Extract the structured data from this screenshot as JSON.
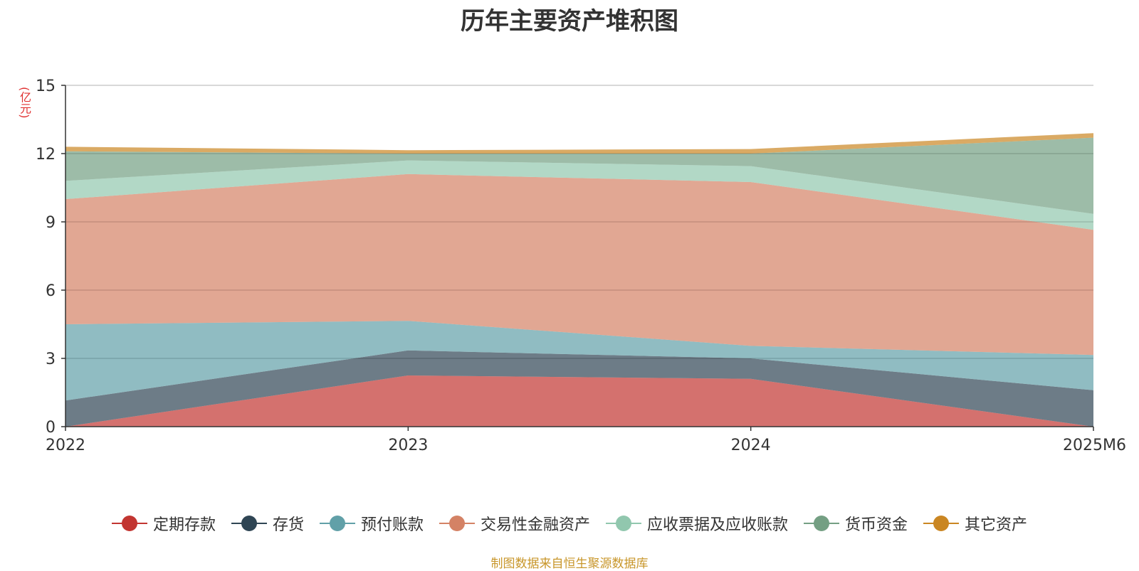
{
  "title": "历年主要资产堆积图",
  "unit_label": "(亿元)",
  "source_note": "制图数据来自恒生聚源数据库",
  "chart_data": {
    "type": "area",
    "stacked": true,
    "title": "历年主要资产堆积图",
    "ylabel": "(亿元)",
    "xlabel": "",
    "categories": [
      "2022",
      "2023",
      "2024",
      "2025M6"
    ],
    "ylim": [
      0,
      15
    ],
    "yticks": [
      0,
      3,
      6,
      9,
      12,
      15
    ],
    "grid": true,
    "legend_position": "bottom",
    "series": [
      {
        "name": "定期存款",
        "color": "#c23531",
        "values": [
          0.0,
          2.25,
          2.1,
          0.0
        ]
      },
      {
        "name": "存货",
        "color": "#2f4554",
        "values": [
          1.15,
          1.1,
          0.9,
          1.6
        ]
      },
      {
        "name": "预付账款",
        "color": "#61a0a8",
        "values": [
          3.35,
          1.3,
          0.55,
          1.55
        ]
      },
      {
        "name": "交易性金融资产",
        "color": "#d48265",
        "values": [
          5.5,
          6.45,
          7.2,
          5.5
        ]
      },
      {
        "name": "应收票据及应收账款",
        "color": "#91c7ae",
        "values": [
          0.8,
          0.6,
          0.7,
          0.7
        ]
      },
      {
        "name": "货币资金",
        "color": "#749f83",
        "values": [
          1.3,
          0.3,
          0.55,
          3.35
        ]
      },
      {
        "name": "其它资产",
        "color": "#ca8622",
        "values": [
          0.2,
          0.15,
          0.2,
          0.2
        ]
      }
    ]
  }
}
